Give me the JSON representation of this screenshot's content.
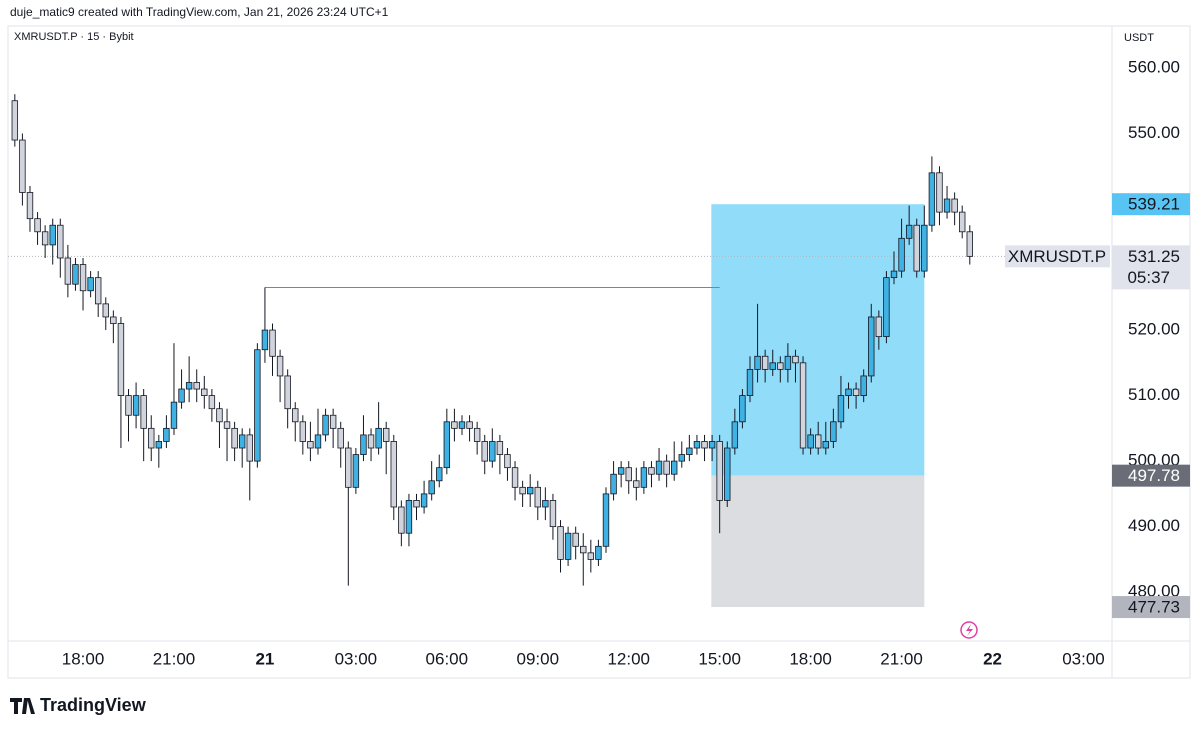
{
  "header": {
    "credit": "duje_matic9 created with TradingView.com, Jan 21, 2026 23:24 UTC+1",
    "brand": "TradingView"
  },
  "chart_data": {
    "type": "candlestick",
    "symbol": "XMRUSDT.P · 15 · Bybit",
    "currency": "USDT",
    "open": [
      555,
      549,
      541,
      537,
      535,
      533,
      536,
      531,
      527,
      530,
      526,
      528,
      524,
      522,
      521,
      510,
      507,
      510,
      505,
      502,
      503,
      505,
      509,
      511,
      512,
      511,
      510,
      508,
      506,
      505,
      502,
      504,
      500,
      517,
      520,
      516,
      513,
      508,
      506,
      503,
      502,
      504,
      507,
      505,
      502,
      496,
      501,
      504,
      502,
      505,
      503,
      493,
      489,
      494,
      493,
      495,
      497,
      499,
      506,
      505,
      506,
      505,
      503,
      500,
      503,
      501,
      499,
      496,
      495,
      496,
      493,
      494,
      490,
      485,
      489,
      487,
      486,
      485,
      487,
      495,
      498,
      499,
      497,
      496,
      499,
      498,
      500,
      498,
      500,
      501,
      502,
      503,
      502,
      503,
      494,
      502,
      506,
      510,
      514,
      516,
      514,
      515,
      514,
      516,
      515,
      502,
      504,
      502,
      503,
      506,
      510,
      511,
      510,
      513,
      522,
      519,
      528,
      529,
      534,
      536,
      529,
      536,
      544,
      538,
      540,
      538,
      535
    ],
    "high": [
      556,
      550,
      542,
      538,
      536,
      537,
      537,
      533,
      531,
      531,
      529,
      529,
      525,
      523,
      522,
      511,
      512,
      511,
      507,
      504,
      507,
      518,
      514,
      516,
      514,
      513,
      511,
      509,
      508,
      506,
      505,
      505,
      518,
      526.5,
      521,
      517,
      514,
      509,
      507,
      506,
      508,
      508,
      508,
      506,
      503,
      502,
      507,
      505,
      509,
      506,
      504,
      494,
      495,
      495,
      497,
      500,
      501,
      508,
      508,
      507,
      507,
      506,
      504,
      505,
      504,
      502,
      500,
      497,
      498,
      497,
      496,
      495,
      491,
      490,
      490,
      489,
      488,
      488,
      496,
      500,
      500,
      500,
      499,
      500,
      500,
      502,
      501,
      503,
      503,
      504,
      504,
      504,
      504,
      504,
      503,
      508,
      511,
      516,
      524,
      517,
      517,
      516,
      518,
      517,
      516,
      505,
      506,
      506,
      508,
      513,
      512,
      512,
      514,
      524,
      523,
      529,
      532,
      537,
      539,
      537,
      539,
      546.5,
      545,
      542,
      541,
      539,
      536
    ],
    "low": [
      548,
      539,
      535,
      533,
      531,
      530,
      528,
      525,
      526,
      523,
      525,
      522,
      520,
      518,
      502,
      503,
      505,
      500,
      500,
      499,
      502,
      504,
      508,
      509,
      509,
      508,
      506,
      502,
      500,
      500,
      499,
      494,
      499,
      515,
      513,
      509,
      505,
      503,
      501,
      500,
      501,
      503,
      502,
      499,
      481,
      495,
      500,
      500,
      501,
      498,
      491,
      487,
      487,
      491,
      492,
      494,
      496,
      498,
      503,
      504,
      503,
      501,
      498,
      499,
      498,
      497,
      494,
      493,
      493,
      491,
      491,
      488,
      483,
      484,
      485,
      481,
      483,
      484,
      486,
      494,
      496,
      495,
      494,
      495,
      496,
      497,
      496,
      497,
      499,
      500,
      501,
      500,
      500,
      489,
      493,
      501,
      505,
      509,
      512,
      512,
      513,
      512,
      512,
      512,
      501,
      501,
      501,
      501,
      502,
      505,
      508,
      508,
      509,
      512,
      517,
      518,
      527,
      528,
      533,
      528,
      528,
      535,
      536,
      537,
      536,
      534,
      530
    ],
    "close": [
      549,
      541,
      537,
      535,
      533,
      536,
      531,
      527,
      530,
      526,
      528,
      524,
      522,
      521,
      510,
      507,
      510,
      505,
      502,
      503,
      505,
      509,
      511,
      512,
      511,
      510,
      508,
      506,
      505,
      502,
      504,
      500,
      517,
      520,
      516,
      513,
      508,
      506,
      503,
      502,
      504,
      507,
      505,
      502,
      496,
      501,
      504,
      502,
      505,
      503,
      493,
      489,
      494,
      493,
      495,
      497,
      499,
      506,
      505,
      506,
      505,
      503,
      500,
      503,
      501,
      499,
      496,
      495,
      496,
      493,
      494,
      490,
      485,
      489,
      487,
      486,
      485,
      487,
      495,
      498,
      499,
      497,
      496,
      499,
      498,
      500,
      498,
      500,
      501,
      502,
      503,
      502,
      503,
      494,
      502,
      506,
      510,
      514,
      516,
      514,
      515,
      514,
      516,
      515,
      502,
      504,
      502,
      503,
      506,
      510,
      511,
      510,
      513,
      522,
      519,
      528,
      529,
      534,
      536,
      529,
      536,
      544,
      538,
      540,
      538,
      535,
      531.25
    ],
    "up_color": "#3fb1e3",
    "down_color": "#d1d4dc",
    "xlim": [
      -0.9,
      144.5
    ],
    "xticks": [
      {
        "value": 9,
        "label": "18:00"
      },
      {
        "value": 21,
        "label": "21:00"
      },
      {
        "value": 33,
        "label": "21"
      },
      {
        "value": 45,
        "label": "03:00"
      },
      {
        "value": 57,
        "label": "06:00"
      },
      {
        "value": 69,
        "label": "09:00"
      },
      {
        "value": 81,
        "label": "12:00"
      },
      {
        "value": 93,
        "label": "15:00"
      },
      {
        "value": 105,
        "label": "18:00"
      },
      {
        "value": 117,
        "label": "21:00"
      },
      {
        "value": 129,
        "label": "22"
      },
      {
        "value": 141,
        "label": "03:00"
      }
    ],
    "ylim": [
      472.7,
      566.1
    ],
    "yticks": [
      {
        "value": 480,
        "label": "480.00"
      },
      {
        "value": 490,
        "label": "490.00"
      },
      {
        "value": 500,
        "label": "500.00"
      },
      {
        "value": 510,
        "label": "510.00"
      },
      {
        "value": 520,
        "label": "520.00"
      },
      {
        "value": 550,
        "label": "550.00"
      },
      {
        "value": 560,
        "label": "560.00"
      }
    ],
    "grid": false,
    "last_price": {
      "value": 531.25,
      "name": "XMRUSDT.P",
      "countdown": "05:37"
    },
    "position": {
      "target": 539.21,
      "entry": 497.78,
      "stop": 477.73,
      "xlim": [
        91.9,
        120
      ],
      "target_color": "#90dcf9",
      "stop_color": "#dcdde1"
    },
    "hline": {
      "value": 526.5,
      "xlim": [
        33,
        93
      ],
      "color": "#c850e0"
    }
  }
}
